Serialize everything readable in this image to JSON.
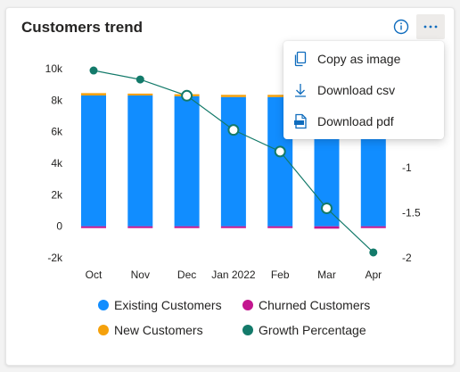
{
  "card": {
    "title": "Customers trend"
  },
  "menu": {
    "items": [
      {
        "label": "Copy as image",
        "icon": "copy-icon"
      },
      {
        "label": "Download csv",
        "icon": "download-icon"
      },
      {
        "label": "Download pdf",
        "icon": "pdf-icon"
      }
    ]
  },
  "colors": {
    "existing": "#118DFF",
    "churned": "#C3168F",
    "new": "#F5A10C",
    "growth": "#137A6A",
    "accent": "#0F6CBD"
  },
  "chart_data": {
    "type": "bar",
    "title": "Customers trend",
    "categories": [
      "Oct",
      "Nov",
      "Dec",
      "Jan 2022",
      "Feb",
      "Mar",
      "Apr"
    ],
    "series": [
      {
        "name": "Existing Customers",
        "kind": "stacked-bar",
        "axis": "left",
        "values": [
          8300,
          8300,
          8250,
          8200,
          8200,
          8200,
          8200
        ]
      },
      {
        "name": "New Customers",
        "kind": "stacked-bar",
        "axis": "left",
        "values": [
          150,
          120,
          130,
          140,
          140,
          120,
          140
        ]
      },
      {
        "name": "Churned Customers",
        "kind": "stacked-bar",
        "axis": "left",
        "values": [
          -100,
          -100,
          -100,
          -110,
          -100,
          -150,
          -110
        ]
      },
      {
        "name": "Growth Percentage",
        "kind": "line",
        "axis": "right",
        "values": [
          0.08,
          -0.02,
          -0.2,
          -0.58,
          -0.82,
          -1.45,
          -1.94
        ]
      }
    ],
    "y_ticks": [
      "10k",
      "8k",
      "6k",
      "4k",
      "2k",
      "0",
      "-2k"
    ],
    "y_tick_values": [
      10000,
      8000,
      6000,
      4000,
      2000,
      0,
      -2000
    ],
    "ylim": [
      -2000,
      10000
    ],
    "y2_ticks": [
      "-1",
      "-1.5",
      "-2"
    ],
    "y2_tick_values": [
      -1,
      -1.5,
      -2
    ],
    "y2lim": [
      -2,
      0.1
    ],
    "legend_position": "bottom",
    "legend": [
      "Existing Customers",
      "Churned Customers",
      "New Customers",
      "Growth Percentage"
    ],
    "grid": false
  }
}
